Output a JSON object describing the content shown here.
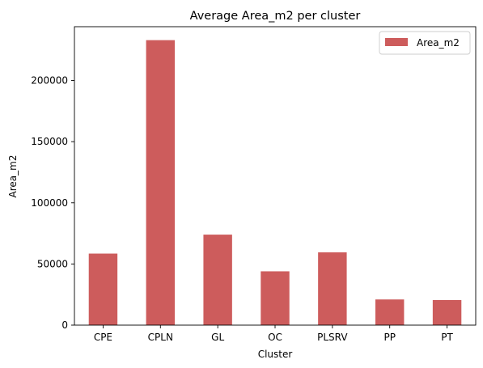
{
  "chart_data": {
    "type": "bar",
    "title": "Average Area_m2 per cluster",
    "xlabel": "Cluster",
    "ylabel": "Area_m2",
    "categories": [
      "CPE",
      "CPLN",
      "GL",
      "OC",
      "PLSRV",
      "PP",
      "PT"
    ],
    "series": [
      {
        "name": "Area_m2",
        "values": [
          58500,
          233000,
          74000,
          44000,
          59500,
          21000,
          20500
        ]
      }
    ],
    "ylim": [
      0,
      244000
    ],
    "yticks": [
      0,
      50000,
      100000,
      150000,
      200000
    ],
    "ytick_labels": [
      "0",
      "50000",
      "100000",
      "150000",
      "200000"
    ],
    "grid": false,
    "legend_position": "top-right",
    "colors": {
      "bar": "#cd5c5c",
      "axis": "#000000",
      "legend_border": "#cccccc"
    }
  }
}
